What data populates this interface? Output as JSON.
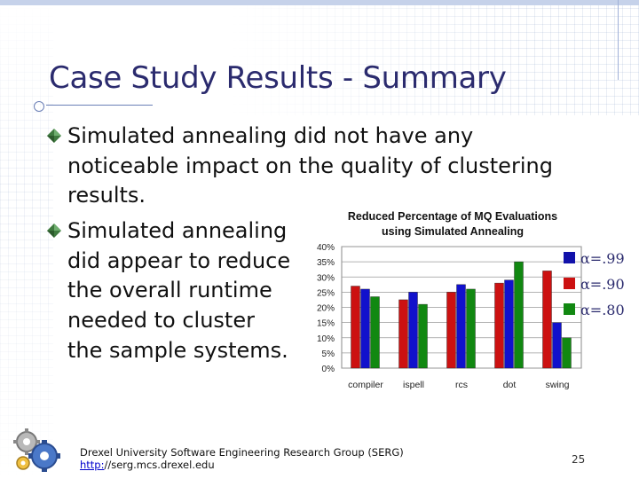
{
  "slide": {
    "title": "Case Study Results - Summary",
    "bullets": [
      {
        "lines": [
          "Simulated annealing did not have any",
          "noticeable impact on the quality of clustering",
          "results."
        ]
      },
      {
        "lines": [
          "Simulated annealing",
          "did appear to reduce",
          "the overall runtime",
          "needed to cluster",
          "the sample systems."
        ]
      }
    ]
  },
  "footer": {
    "org": "Drexel University Software Engineering Research Group (SERG)",
    "link_prefix": "http:",
    "link_rest": "//serg.mcs.drexel.edu",
    "page_number": "25"
  },
  "colors": {
    "title": "#2b2b6e",
    "bullet": "#3f7a3f",
    "series": [
      "#cc1111",
      "#1111cc",
      "#118811"
    ],
    "legend_swatch": [
      "#1111aa",
      "#cc1111",
      "#118811"
    ],
    "legend_text": "#2b2b6e"
  },
  "chart_data": {
    "type": "bar",
    "title": [
      "Reduced Percentage of MQ Evaluations",
      "using Simulated Annealing"
    ],
    "categories": [
      "compiler",
      "ispell",
      "rcs",
      "dot",
      "swing"
    ],
    "ylim": [
      0,
      40
    ],
    "yticks": [
      "0%",
      "5%",
      "10%",
      "15%",
      "20%",
      "25%",
      "30%",
      "35%",
      "40%"
    ],
    "series": [
      {
        "name": "α=.99",
        "values": [
          27,
          22.5,
          25,
          28,
          32
        ]
      },
      {
        "name": "α=.90",
        "values": [
          26,
          25,
          27.5,
          29,
          15
        ]
      },
      {
        "name": "α=.80",
        "values": [
          23.5,
          21,
          26,
          35,
          10
        ]
      }
    ],
    "legend": [
      "α=.99",
      "α=.90",
      "α=.80"
    ],
    "legend_position": "right",
    "grid": true
  }
}
